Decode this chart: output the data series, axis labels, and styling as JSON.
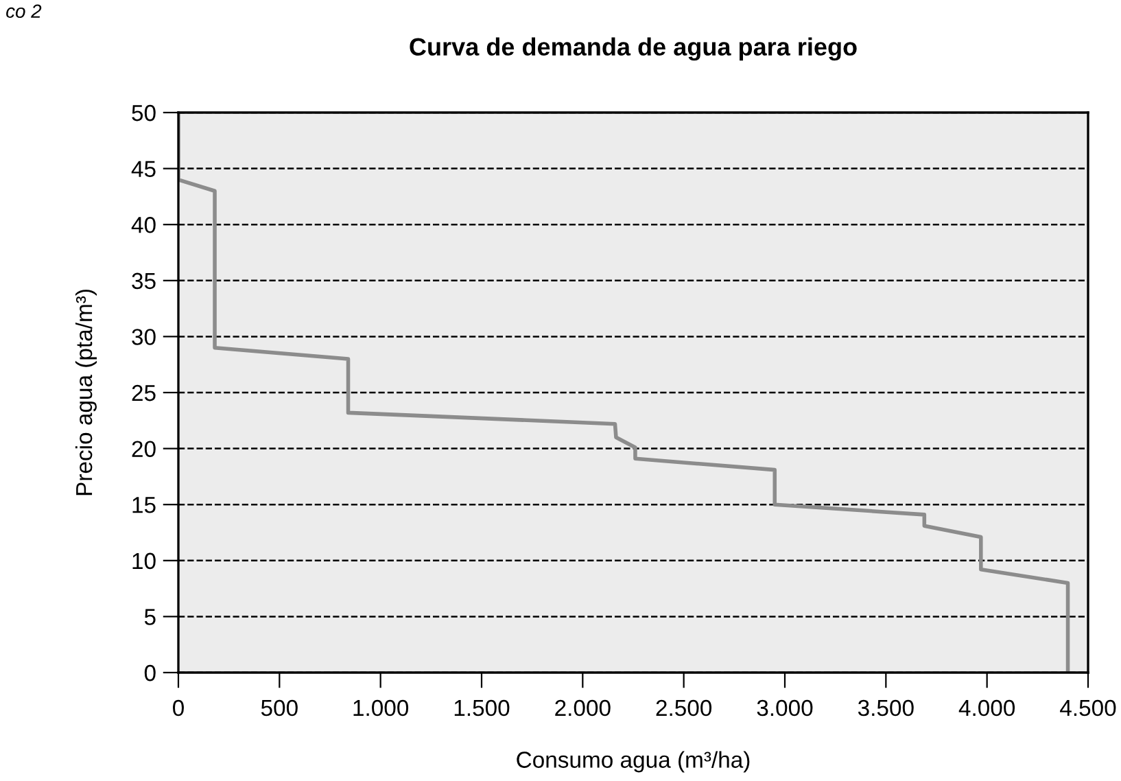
{
  "chart_data": {
    "type": "line",
    "title": "Curva de demanda de agua para riego",
    "xlabel": "Consumo agua (m³/ha)",
    "ylabel": "Precio agua (pta/m³)",
    "annotations": [
      "co 2"
    ],
    "series": [
      {
        "color": "#8c8c8c",
        "x": [
          0,
          0,
          180,
          180,
          840,
          840,
          2160,
          2165,
          2260,
          2260,
          2950,
          2950,
          3690,
          3690,
          3970,
          3970,
          4400,
          4400
        ],
        "values": [
          50,
          44,
          43,
          29,
          28,
          23.2,
          22.2,
          21,
          20.1,
          19.1,
          18.1,
          15,
          14.1,
          13.1,
          12.1,
          9.2,
          8,
          0
        ]
      }
    ],
    "xlim": [
      0,
      4500
    ],
    "ylim": [
      0,
      50
    ],
    "xticks": [
      0,
      500,
      {
        "value": 1000,
        "label": "1.000"
      },
      {
        "value": 1500,
        "label": "1.500"
      },
      {
        "value": 2000,
        "label": "2.000"
      },
      {
        "value": 2500,
        "label": "2.500"
      },
      {
        "value": 3000,
        "label": "3.000"
      },
      {
        "value": 3500,
        "label": "3.500"
      },
      {
        "value": 4000,
        "label": "4.000"
      },
      {
        "value": 4500,
        "label": "4.500"
      }
    ],
    "yticks": [
      0,
      5,
      10,
      15,
      20,
      25,
      30,
      35,
      40,
      45,
      50
    ],
    "grid": "y",
    "marker": "none",
    "line_style": "solid",
    "legend": false
  }
}
